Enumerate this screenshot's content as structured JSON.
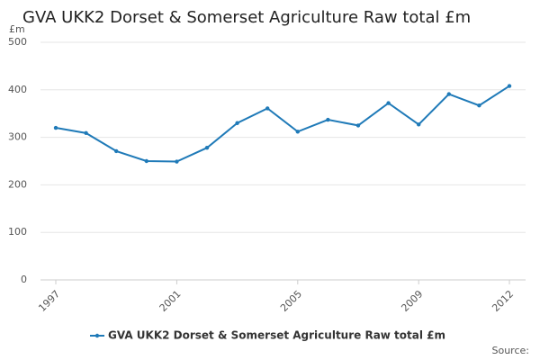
{
  "chart_data": {
    "type": "line",
    "title": "GVA UKK2 Dorset & Somerset Agriculture Raw total £m",
    "y_label": "£m",
    "source": "Source:",
    "x": [
      1997,
      1998,
      1999,
      2000,
      2001,
      2002,
      2003,
      2004,
      2005,
      2006,
      2007,
      2008,
      2009,
      2010,
      2011,
      2012
    ],
    "series": [
      {
        "name": "GVA UKK2 Dorset & Somerset Agriculture Raw total £m",
        "color": "#1f7ab8",
        "values": [
          320,
          309,
          271,
          250,
          249,
          278,
          330,
          361,
          312,
          337,
          325,
          372,
          327,
          391,
          367,
          408
        ]
      }
    ],
    "xlim": [
      1997,
      2012
    ],
    "xticks": [
      1997,
      2001,
      2005,
      2009,
      2012
    ],
    "ylim": [
      0,
      500
    ],
    "yticks": [
      0,
      100,
      200,
      300,
      400,
      500
    ],
    "grid": true
  }
}
